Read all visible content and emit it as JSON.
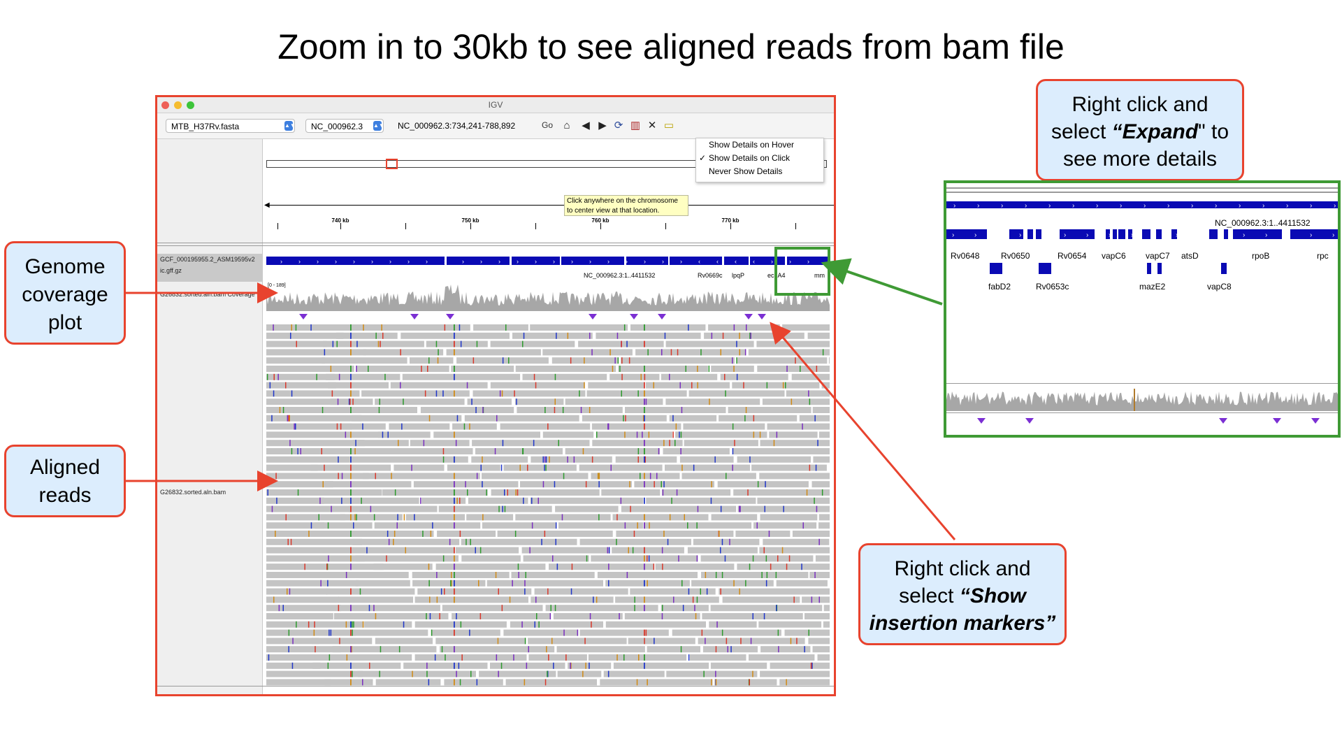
{
  "slide": {
    "title": "Zoom in to 30kb to see aligned reads from bam file"
  },
  "igv": {
    "window_title": "IGV",
    "genome_select": "MTB_H37Rv.fasta",
    "chromosome_select": "NC_000962.3",
    "locus": "NC_000962.3:734,241-788,892",
    "go_label": "Go",
    "toolbar_icons": [
      "home-icon",
      "back-icon",
      "forward-icon",
      "refresh-icon",
      "roi-icon",
      "resize-icon",
      "popup-text-icon"
    ],
    "popup_menu": [
      {
        "label": "Show Details on Hover",
        "checked": false
      },
      {
        "label": "Show Details on Click",
        "checked": true
      },
      {
        "label": "Never Show Details",
        "checked": false
      }
    ],
    "ruler_ticks": [
      "740 kb",
      "750 kb",
      "760 kb",
      "770 kb"
    ],
    "tooltip": "Click anywhere on the chromosome to center view at that location.",
    "tracks": {
      "annotation_name_1": "GCF_000195955.2_ASM19595v2",
      "annotation_name_2": "ic.gff.gz",
      "coverage_name": "G26832.sorted.aln.bam Coverage",
      "coverage_range": "[0 - 189]",
      "alignment_name": "G26832.sorted.aln.bam"
    },
    "gene_labels": [
      "NC_000962.3:1..4411532",
      "Rv0669c",
      "lpqP",
      "echA4",
      "mm"
    ],
    "colors": {
      "gene": "#0a0ab4",
      "coverage": "#a7a7a7",
      "insertion": "#7b2fd3",
      "frame": "#e8432e",
      "zoom_frame": "#3f9a35"
    }
  },
  "callouts": {
    "genome_coverage": "Genome coverage plot",
    "aligned_reads": "Aligned reads",
    "expand_line1": "Right click and",
    "expand_prefix": "select ",
    "expand_em": "“Expand",
    "expand_suffix": "\" to",
    "expand_line3": "see more details",
    "insertion_line1": "Right click and",
    "insertion_prefix": "select ",
    "insertion_em1": "“Show",
    "insertion_em2": "insertion markers”"
  },
  "inset": {
    "locus_label": "NC_000962.3:1..4411532",
    "genes_top": [
      "Rv0648",
      "Rv0650",
      "Rv0654",
      "vapC6",
      "vapC7",
      "atsD",
      "rpoB",
      "rpc"
    ],
    "genes_bottom": [
      "fabD2",
      "Rv0653c",
      "mazE2",
      "vapC8"
    ]
  }
}
